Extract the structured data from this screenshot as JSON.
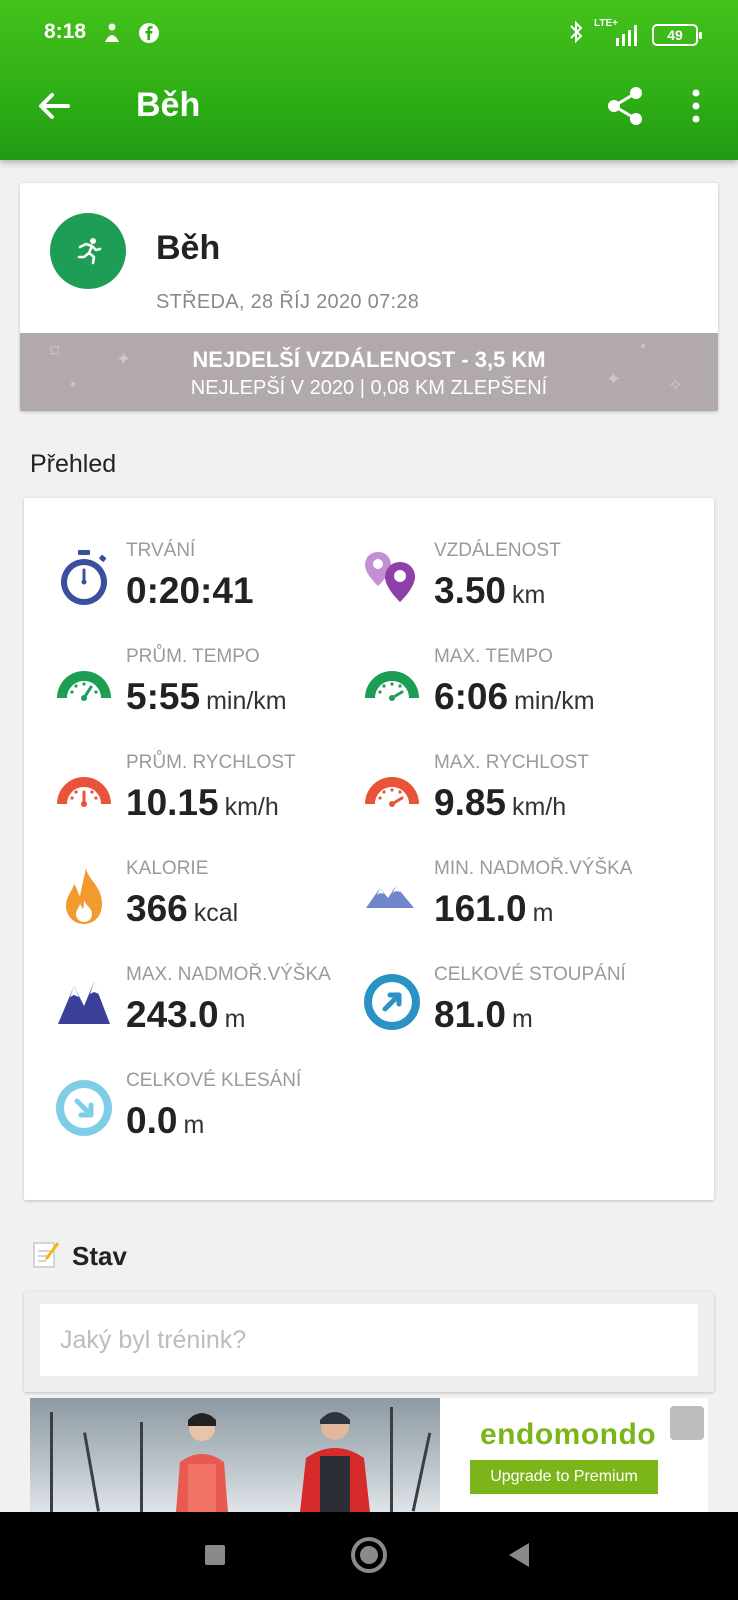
{
  "status_bar": {
    "time": "8:18",
    "battery": "49",
    "network": "LTE+"
  },
  "app_bar": {
    "title": "Běh"
  },
  "header": {
    "title": "Běh",
    "date": "STŘEDA, 28 ŘÍJ 2020 07:28",
    "record_line1": "NEJDELŠÍ VZDÁLENOST  -  3,5 KM",
    "record_line2": "NEJLEPŠÍ V 2020  |  0,08 KM ZLEPŠENÍ"
  },
  "overview": {
    "title": "Přehled",
    "stats": [
      {
        "label": "TRVÁNÍ",
        "value": "0:20:41",
        "unit": "",
        "icon": "stopwatch-icon",
        "color": "#3b4fa0"
      },
      {
        "label": "VZDÁLENOST",
        "value": "3.50",
        "unit": "km",
        "icon": "map-pin-icon",
        "color": "#8e3fa8"
      },
      {
        "label": "PRŮM. TEMPO",
        "value": "5:55",
        "unit": "min/km",
        "icon": "speedometer-icon",
        "color": "#1e9e55"
      },
      {
        "label": "MAX. TEMPO",
        "value": "6:06",
        "unit": "min/km",
        "icon": "speedometer-icon",
        "color": "#1e9e55"
      },
      {
        "label": "PRŮM. RYCHLOST",
        "value": "10.15",
        "unit": "km/h",
        "icon": "speedometer-icon",
        "color": "#e8533a"
      },
      {
        "label": "MAX. RYCHLOST",
        "value": "9.85",
        "unit": "km/h",
        "icon": "speedometer-icon",
        "color": "#e8533a"
      },
      {
        "label": "KALORIE",
        "value": "366",
        "unit": "kcal",
        "icon": "flame-icon",
        "color": "#f29a2e"
      },
      {
        "label": "MIN. NADMOŘ.VÝŠKA",
        "value": "161.0",
        "unit": "m",
        "icon": "mountains-low-icon",
        "color": "#6f86c8"
      },
      {
        "label": "MAX. NADMOŘ.VÝŠKA",
        "value": "243.0",
        "unit": "m",
        "icon": "mountains-high-icon",
        "color": "#3a3f9a"
      },
      {
        "label": "CELKOVÉ STOUPÁNÍ",
        "value": "81.0",
        "unit": "m",
        "icon": "ascent-icon",
        "color": "#2a92c4"
      },
      {
        "label": "CELKOVÉ KLESÁNÍ",
        "value": "0.0",
        "unit": "m",
        "icon": "descent-icon",
        "color": "#7fcde6"
      }
    ]
  },
  "stav": {
    "label": "Stav",
    "placeholder": "Jaký byl trénink?"
  },
  "ad": {
    "brand": "endomondo",
    "button": "Upgrade to Premium"
  }
}
